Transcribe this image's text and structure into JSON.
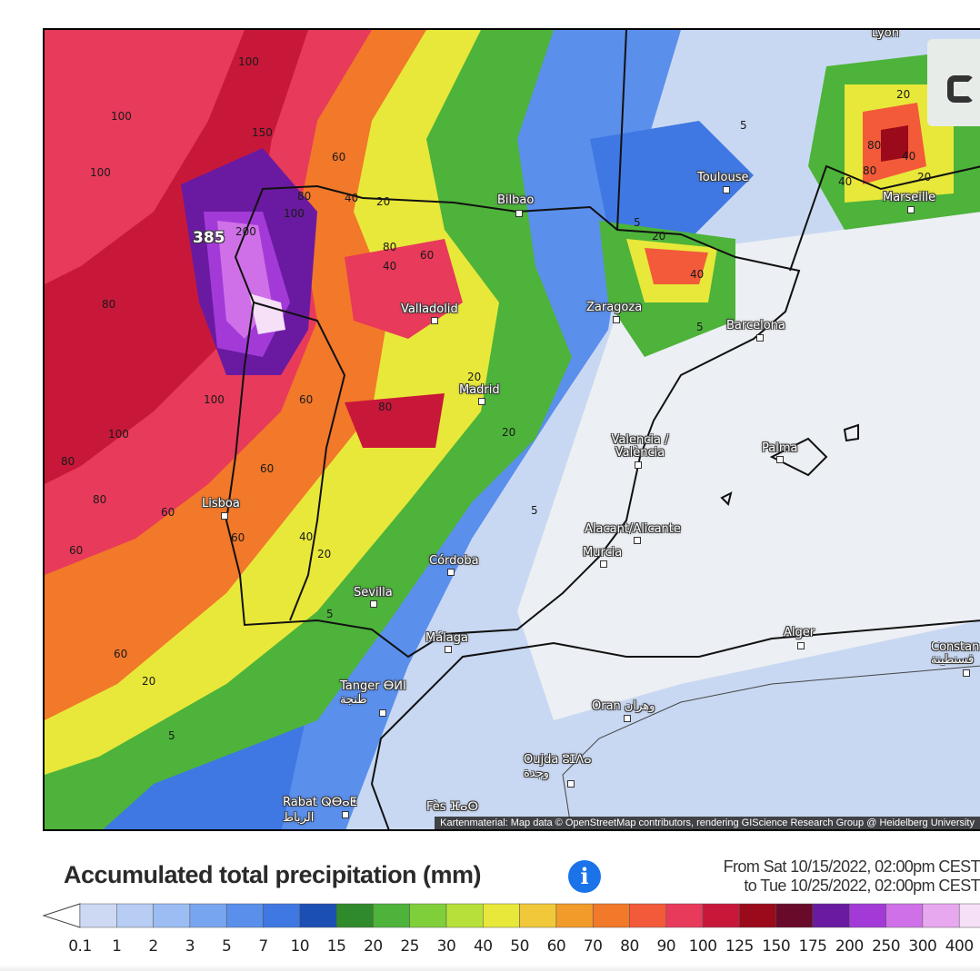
{
  "map": {
    "attribution": "Kartenmaterial: Map data © OpenStreetMap contributors, rendering GIScience Research Group @ Heidelberg University",
    "max_label": "385",
    "cities": [
      "Lyon",
      "Toulouse",
      "Marseille",
      "Bilbao",
      "Valladolid",
      "Zaragoza",
      "Barcelona",
      "Madrid",
      "Valencia / València",
      "Palma",
      "Lisboa",
      "Alacant/Alicante",
      "Murcia",
      "Córdoba",
      "Sevilla",
      "Málaga",
      "Alger",
      "Constan… قسنطينة",
      "Tanger ⴱⵍⵏ طنجة",
      "Oran وهران",
      "Oujda ⵓⵊⴷⴰ وجدة",
      "Rabat ⵕⴱⴰⵟ الرباط",
      "Fès ⴼⴰⵙ"
    ],
    "contour_labels": [
      "100",
      "100",
      "100",
      "150",
      "100",
      "80",
      "60",
      "40",
      "20",
      "20",
      "200",
      "100",
      "80",
      "40",
      "60",
      "80",
      "60",
      "100",
      "60",
      "80",
      "60",
      "80",
      "60",
      "80",
      "60",
      "20",
      "40",
      "60",
      "20",
      "20",
      "5",
      "5",
      "5",
      "5",
      "5",
      "5",
      "20",
      "40",
      "80",
      "40",
      "20",
      "80",
      "40",
      "20"
    ]
  },
  "legend": {
    "title": "Accumulated total precipitation (mm)",
    "info_icon": "i",
    "date_from": "From Sat 10/15/2022, 02:00pm CEST",
    "date_to": "to Tue 10/25/2022, 02:00pm CEST",
    "scale_values": [
      "0.1",
      "1",
      "2",
      "3",
      "5",
      "7",
      "10",
      "15",
      "20",
      "25",
      "30",
      "40",
      "50",
      "60",
      "70",
      "80",
      "90",
      "100",
      "125",
      "150",
      "175",
      "200",
      "250",
      "300",
      "400"
    ],
    "scale_colors": [
      "#cdd9f2",
      "#b7cdf3",
      "#9bbdf4",
      "#78a5ef",
      "#5a8fec",
      "#3f78e3",
      "#1c4fb3",
      "#2e8a2a",
      "#4db33a",
      "#7fcf3a",
      "#b7e13a",
      "#e8e83a",
      "#f0c83a",
      "#f29a2a",
      "#f2782a",
      "#f25a3a",
      "#e83a5a",
      "#c8183a",
      "#9a0a1a",
      "#6a0a2a",
      "#6a1aa0",
      "#a33ad8",
      "#d070e8",
      "#e8a8f0",
      "#f5e0f8"
    ]
  }
}
